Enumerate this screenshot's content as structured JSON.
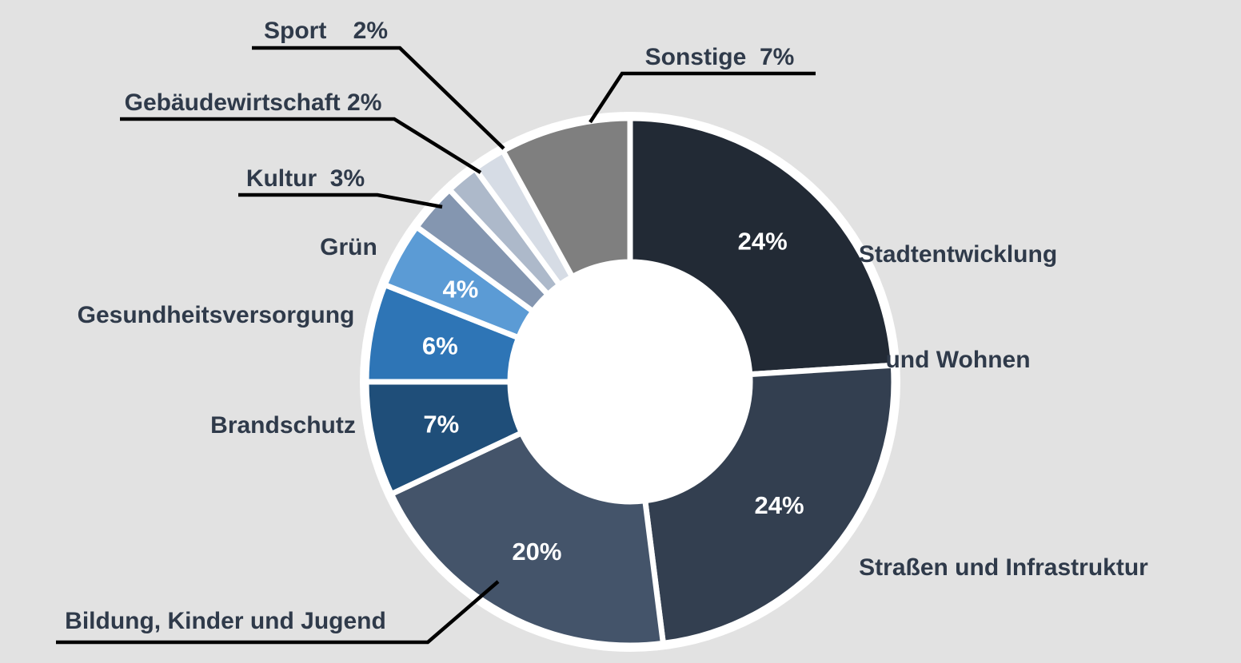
{
  "colors": {
    "background": "#E2E2E2",
    "label_text": "#2F3A4A",
    "separator": "#FFFFFF",
    "leader_line": "#000000",
    "inner_label_text": "#FFFFFF"
  },
  "chart_data": {
    "type": "pie",
    "subtype": "donut",
    "unit": "%",
    "start_angle_deg": 0,
    "direction": "clockwise",
    "inner_radius_frac": 0.45,
    "legend": "none",
    "slices": [
      {
        "label": "Stadtentwicklung und Wohnen",
        "value": 24,
        "display": "24%",
        "color": "#222A35",
        "inner_label": true,
        "draw_pct": 24
      },
      {
        "label": "Straßen und Infrastruktur",
        "value": 24,
        "display": "24%",
        "color": "#333F50",
        "inner_label": true,
        "draw_pct": 24
      },
      {
        "label": "Bildung, Kinder und Jugend",
        "value": 20,
        "display": "20%",
        "color": "#44546A",
        "inner_label": true,
        "draw_pct": 20
      },
      {
        "label": "Brandschutz",
        "value": 7,
        "display": "7%",
        "color": "#1F4E79",
        "inner_label": true,
        "draw_pct": 7
      },
      {
        "label": "Gesundheitsversorgung",
        "value": 6,
        "display": "6%",
        "color": "#2E75B6",
        "inner_label": true,
        "draw_pct": 6
      },
      {
        "label": "Grün",
        "value": 4,
        "display": "4%",
        "color": "#5B9BD5",
        "inner_label": true,
        "draw_pct": 4
      },
      {
        "label": "Kultur",
        "value": 3,
        "display": "3%",
        "color": "#8496B0",
        "inner_label": false,
        "draw_pct": 3
      },
      {
        "label": "Gebäudewirtschaft",
        "value": 2,
        "display": "2%",
        "color": "#ADB9CA",
        "inner_label": false,
        "draw_pct": 2
      },
      {
        "label": "Sport",
        "value": 2,
        "display": "2%",
        "color": "#D6DCE5",
        "inner_label": false,
        "draw_pct": 2
      },
      {
        "label": "Sonstige",
        "value": 7,
        "display": "7%",
        "color": "#7F7F7F",
        "inner_label": false,
        "draw_pct": 8
      }
    ]
  },
  "labels": {
    "sport": "Sport    2%",
    "sonstige": "Sonstige  7%",
    "gebaeudewirtschaft": "Gebäudewirtschaft 2%",
    "kultur": "Kultur  3%",
    "gruen": "Grün",
    "gesundheitsversorgung": "Gesundheitsversorgung",
    "brandschutz": "Brandschutz",
    "bildung": "Bildung, Kinder und Jugend",
    "stadtentwicklung_line1": "Stadtentwicklung",
    "stadtentwicklung_line2": "und Wohnen",
    "strassen": "Straßen und Infrastruktur"
  }
}
